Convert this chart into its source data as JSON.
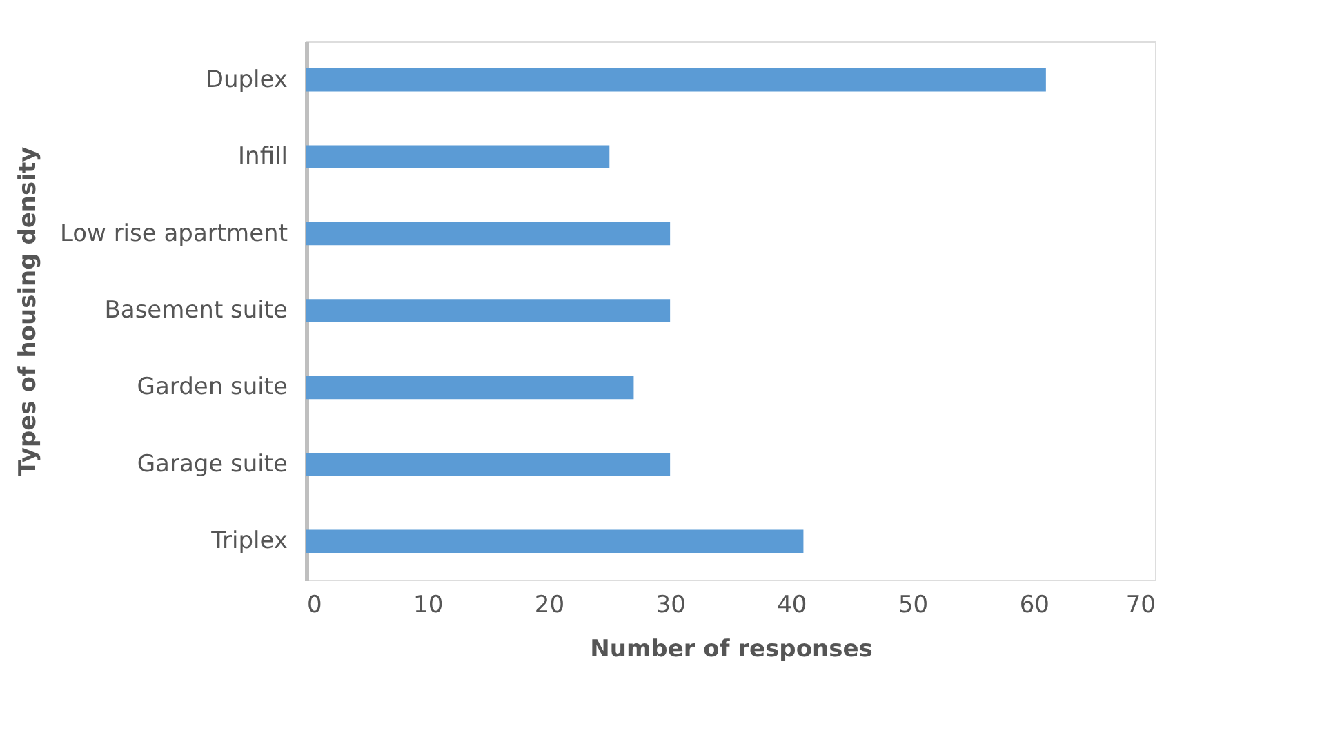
{
  "chart_data": {
    "type": "bar",
    "orientation": "horizontal",
    "xlabel": "Number of responses",
    "ylabel": "Types of housing density",
    "categories": [
      "Duplex",
      "Infill",
      "Low rise apartment",
      "Basement suite",
      "Garden suite",
      "Garage suite",
      "Triplex"
    ],
    "values": [
      61,
      25,
      30,
      30,
      27,
      30,
      41
    ],
    "color": "#5b9bd5",
    "xlim": [
      0,
      70
    ],
    "xticks": [
      0,
      10,
      20,
      30,
      40,
      50,
      60,
      70
    ],
    "grid": false
  }
}
